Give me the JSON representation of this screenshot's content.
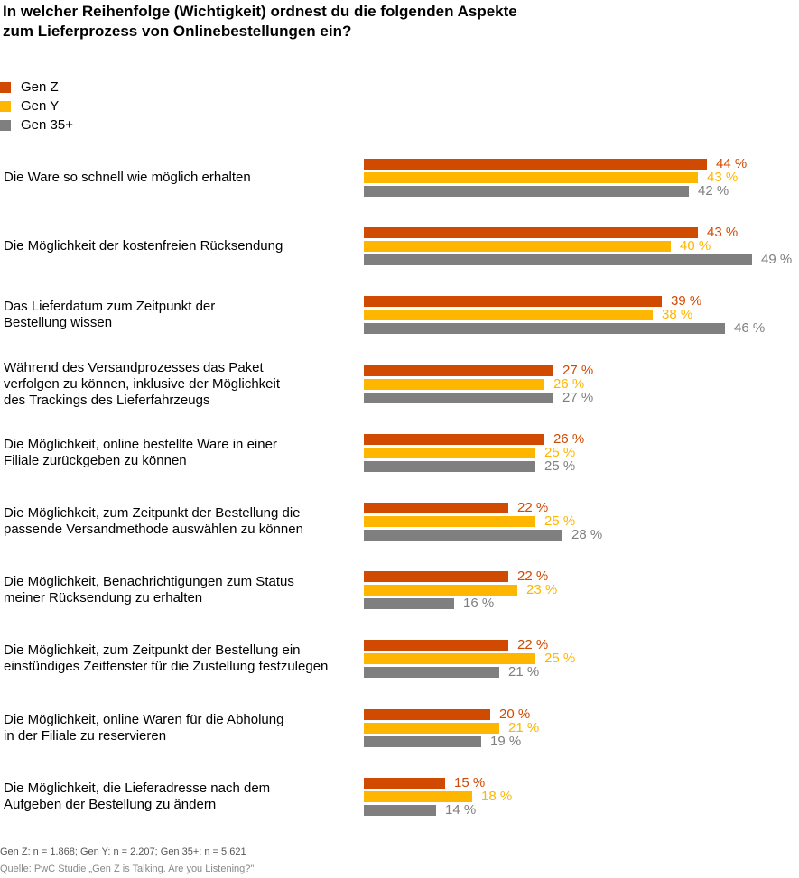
{
  "chart_data": {
    "type": "bar",
    "orientation": "horizontal",
    "title": "In welcher Reihenfolge (Wichtigkeit) ordnest du die folgenden Aspekte zum Lieferprozess von Onlinebestellungen ein?",
    "title_lines": [
      "In welcher Reihenfolge (Wichtigkeit) ordnest du die folgenden Aspekte",
      "zum Lieferprozess von Onlinebestellungen ein?"
    ],
    "categories": [
      "Die Ware so schnell wie möglich erhalten",
      "Die Möglichkeit der kostenfreien Rücksendung",
      "Das Lieferdatum zum Zeitpunkt der Bestellung wissen",
      "Während des Versandprozesses das Paket verfolgen zu können, inklusive der Möglichkeit des Trackings des Lieferfahrzeugs",
      "Die Möglichkeit, online bestellte Ware in einer Filiale zurückgeben zu können",
      "Die Möglichkeit, zum Zeitpunkt der Bestellung die passende Versandmethode auswählen zu können",
      "Die Möglichkeit, Benachrichtigungen zum Status meiner Rücksendung zu erhalten",
      "Die Möglichkeit, zum Zeitpunkt der Bestellung ein einstündiges Zeitfenster für die Zustellung festzulegen",
      "Die Möglichkeit, online Waren für die Abholung in der Filiale zu reservieren",
      "Die Möglichkeit, die Lieferadresse nach dem Aufgeben der Bestellung zu ändern"
    ],
    "category_lines": [
      [
        "Die Ware so schnell wie möglich erhalten"
      ],
      [
        "Die Möglichkeit der kostenfreien Rücksendung"
      ],
      [
        "Das Lieferdatum zum Zeitpunkt der",
        "Bestellung wissen"
      ],
      [
        "Während des Versandprozesses das Paket",
        "verfolgen zu können, inklusive der Möglichkeit",
        "des Trackings des Lieferfahrzeugs"
      ],
      [
        "Die Möglichkeit, online bestellte Ware in einer",
        "Filiale zurückgeben zu können"
      ],
      [
        "Die Möglichkeit, zum Zeitpunkt der Bestellung die",
        "passende Versandmethode auswählen zu können"
      ],
      [
        "Die Möglichkeit, Benachrichtigungen zum Status",
        "meiner Rücksendung zu erhalten"
      ],
      [
        "Die Möglichkeit, zum Zeitpunkt der Bestellung ein",
        "einstündiges Zeitfenster für die Zustellung festzulegen"
      ],
      [
        "Die Möglichkeit, online Waren für die Abholung",
        "in der Filiale zu reservieren"
      ],
      [
        "Die Möglichkeit, die Lieferadresse nach dem",
        "Aufgeben der Bestellung zu ändern"
      ]
    ],
    "series": [
      {
        "name": "Gen Z",
        "color": "#D04A02",
        "values": [
          44,
          43,
          39,
          27,
          26,
          22,
          22,
          22,
          20,
          15
        ]
      },
      {
        "name": "Gen Y",
        "color": "#FFB600",
        "values": [
          43,
          40,
          38,
          26,
          25,
          25,
          23,
          25,
          21,
          18
        ]
      },
      {
        "name": "Gen 35+",
        "color": "#7F7F7F",
        "values": [
          42,
          49,
          46,
          27,
          25,
          28,
          16,
          21,
          19,
          14
        ]
      }
    ],
    "value_suffix": " %",
    "xlabel": "",
    "ylabel": "",
    "legend": "top-left",
    "grid": false
  },
  "footnote": "Gen Z: n = 1.868; Gen Y: n = 2.207; Gen 35+: n = 5.621",
  "source": "Quelle: PwC Studie „Gen Z is Talking. Are you Listening?\""
}
